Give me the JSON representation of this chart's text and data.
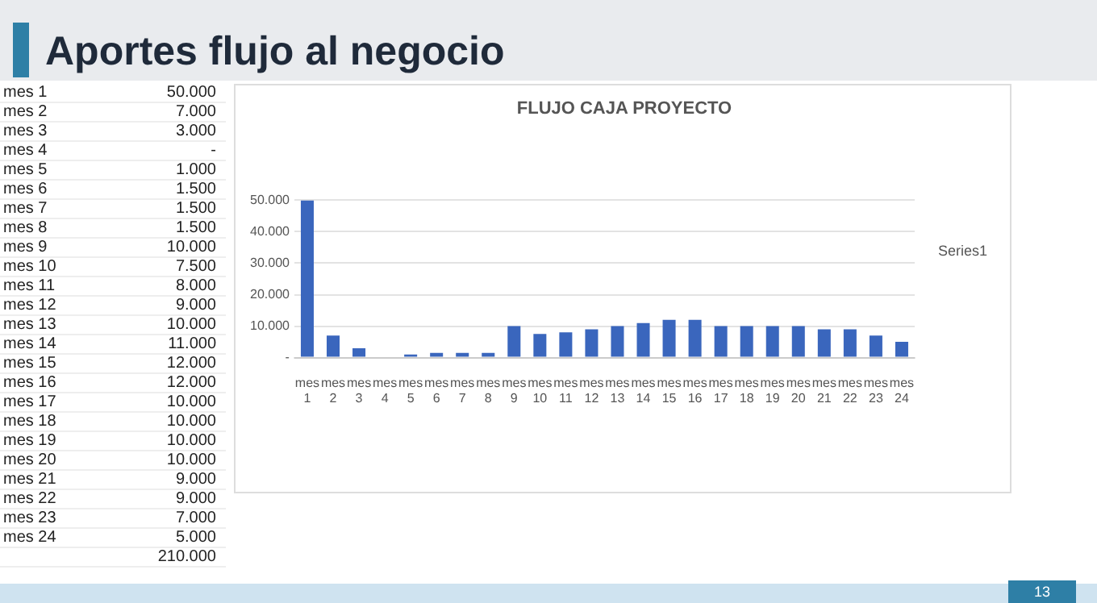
{
  "chart_data": [
    {
      "type": "other",
      "annotations": [
        "mes 1",
        "50.000",
        "mes 2",
        "7.000",
        "mes 3",
        "3.000",
        "mes 4",
        "-",
        "mes 5",
        "1.000",
        "mes 6",
        "1.500",
        "mes 7",
        "1.500",
        "mes 8",
        "1.500",
        "mes 9",
        "10.000",
        "mes 10",
        "7.500",
        "mes 11",
        "8.000",
        "mes 12",
        "9.000",
        "mes 13",
        "10.000",
        "mes 14",
        "11.000",
        "mes 15",
        "12.000",
        "mes 16",
        "12.000",
        "mes 17",
        "10.000",
        "mes 18",
        "10.000",
        "mes 19",
        "10.000",
        "mes 20",
        "10.000",
        "mes 21",
        "9.000",
        "mes 22",
        "9.000",
        "mes 23",
        "7.000",
        "mes 24",
        "5.000",
        "210.000"
      ]
    },
    {
      "type": "bar",
      "title": "FLUJO CAJA PROYECTO",
      "subtitle": "Aportes flujo al negocio",
      "categories": [
        "mes 1",
        "mes 2",
        "mes 3",
        "mes 4",
        "mes 5",
        "mes 6",
        "mes 7",
        "mes 8",
        "mes 9",
        "mes 10",
        "mes 11",
        "mes 12",
        "mes 13",
        "mes 14",
        "mes 15",
        "mes 16",
        "mes 17",
        "mes 18",
        "mes 19",
        "mes 20",
        "mes 21",
        "mes 22",
        "mes 23",
        "mes 24"
      ],
      "series": [
        {
          "name": "Series1",
          "color": "#3a66bd",
          "values": [
            50000,
            7000,
            3000,
            0,
            1000,
            1500,
            1500,
            1500,
            10000,
            7500,
            8000,
            9000,
            10000,
            11000,
            12000,
            12000,
            10000,
            10000,
            10000,
            10000,
            9000,
            9000,
            7000,
            5000
          ]
        }
      ],
      "ylim": [
        0,
        50000
      ],
      "yticks": [
        {
          "value": 0,
          "label": "-"
        },
        {
          "value": 10000,
          "label": "10.000"
        },
        {
          "value": 20000,
          "label": "20.000"
        },
        {
          "value": 30000,
          "label": "30.000"
        },
        {
          "value": 40000,
          "label": "40.000"
        },
        {
          "value": 50000,
          "label": "50.000"
        }
      ],
      "grid": "y",
      "legend": "right",
      "annotations": [
        "13"
      ]
    }
  ]
}
